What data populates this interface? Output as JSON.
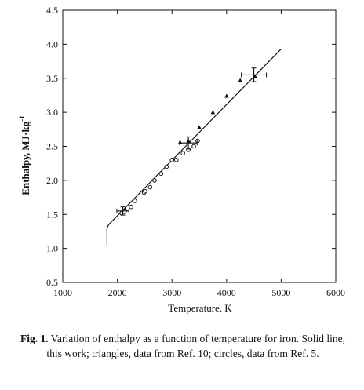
{
  "chart_data": {
    "type": "scatter",
    "xlabel": "Temperature, K",
    "ylabel": "Enthalpy, MJ·kg",
    "ylabel_superscript": "-1",
    "xlim": [
      1000,
      6000
    ],
    "ylim": [
      0.5,
      4.5
    ],
    "x_ticks": [
      1000,
      2000,
      3000,
      4000,
      5000,
      6000
    ],
    "y_ticks": [
      "0.5",
      "1.0",
      "1.5",
      "2.0",
      "2.5",
      "3.0",
      "3.5",
      "4.0",
      "4.5"
    ],
    "grid": false,
    "series": [
      {
        "name": "Solid line, this work",
        "marker": "line",
        "x": [
          1811,
          1811,
          1840,
          5000
        ],
        "y": [
          1.05,
          1.3,
          1.35,
          3.93
        ]
      },
      {
        "name": "triangles, data from Ref. 10",
        "marker": "triangle",
        "x": [
          2100,
          2150,
          3150,
          3300,
          3500,
          3750,
          4000,
          4250,
          4520
        ],
        "y": [
          1.55,
          1.57,
          2.56,
          2.58,
          2.78,
          3.0,
          3.24,
          3.47,
          3.53
        ]
      },
      {
        "name": "circles, data from Ref. 5",
        "marker": "circle",
        "x": [
          2080,
          2130,
          2250,
          2320,
          2490,
          2510,
          2600,
          2680,
          2800,
          2900,
          3000,
          3080,
          3200,
          3300,
          3400,
          3470
        ],
        "y": [
          1.52,
          1.54,
          1.61,
          1.7,
          1.82,
          1.84,
          1.9,
          2.0,
          2.1,
          2.2,
          2.3,
          2.3,
          2.4,
          2.45,
          2.5,
          2.58
        ]
      }
    ],
    "error_bars": [
      {
        "x": 2100,
        "y": 1.55,
        "xerr": 110,
        "yerr": 0.06
      },
      {
        "x": 3300,
        "y": 2.55,
        "xerr": 160,
        "yerr": 0.09
      },
      {
        "x": 4500,
        "y": 3.55,
        "xerr": 230,
        "yerr": 0.1
      }
    ]
  },
  "caption": {
    "label": "Fig. 1.",
    "text": "Variation of enthalpy as a function of temperature for iron. Solid line, this work; triangles, data from Ref. 10; circles, data from Ref. 5."
  }
}
